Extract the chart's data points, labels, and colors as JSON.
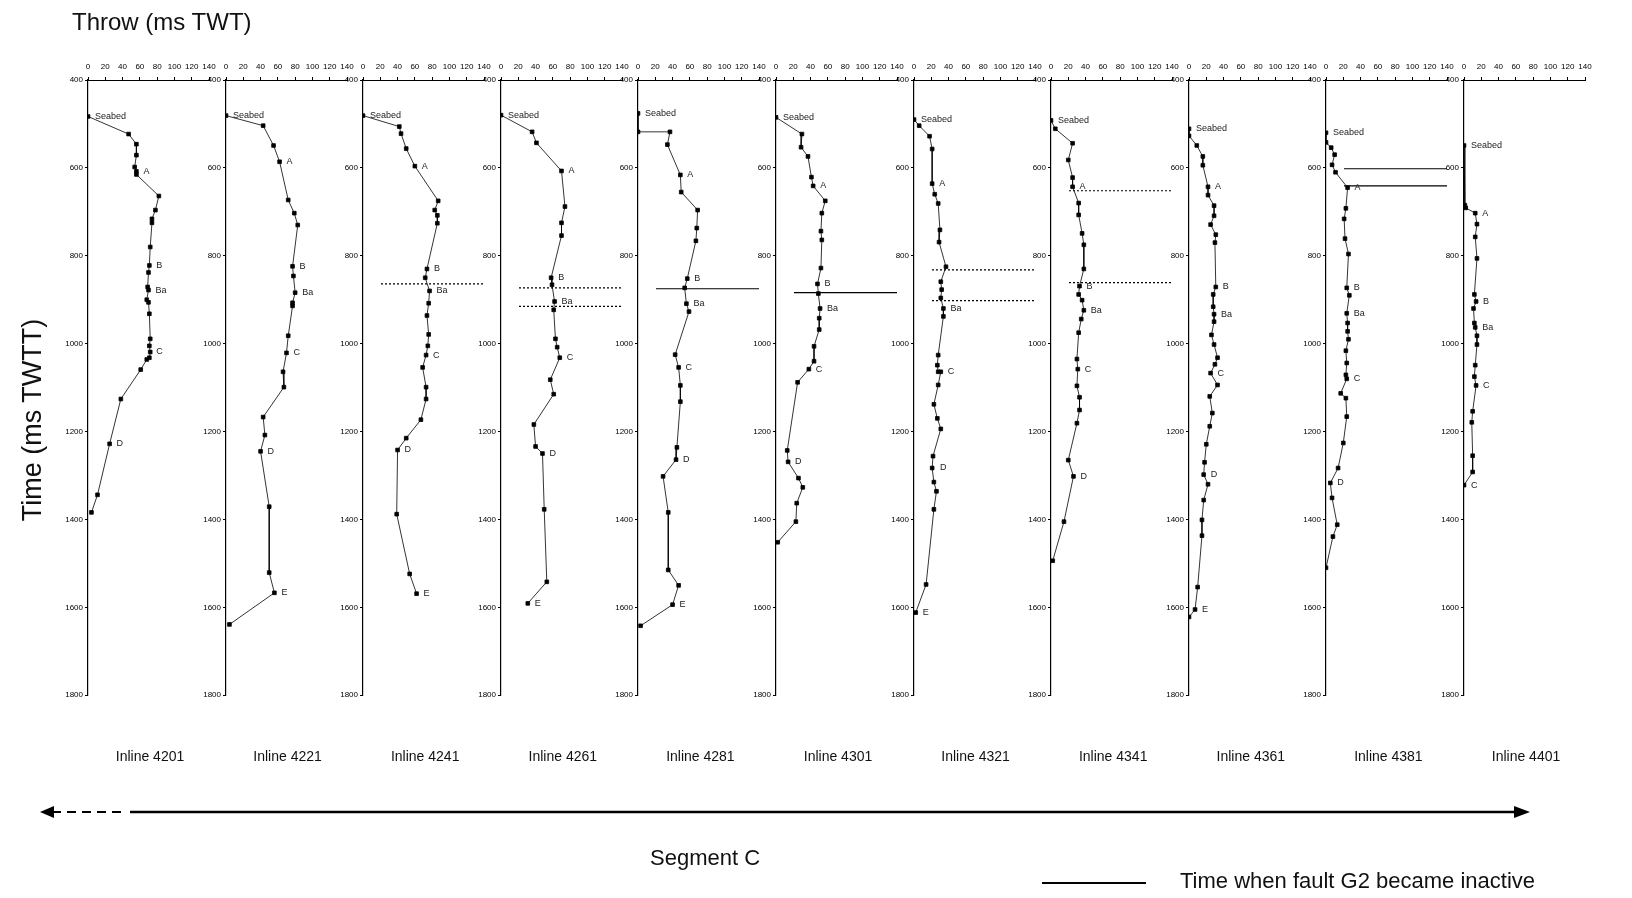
{
  "chart_data": [
    {
      "type": "line",
      "title": "Inline 4201",
      "xlabel": "Throw (ms TWT)",
      "ylabel": "Time (ms TWTT)",
      "xlim": [
        0,
        140
      ],
      "xticks": [
        0,
        20,
        40,
        60,
        80,
        100,
        120,
        140
      ],
      "ylim": [
        1800,
        400
      ],
      "yticks": [
        400,
        600,
        800,
        1000,
        1200,
        1400,
        1600,
        1800
      ],
      "marker": "square",
      "series": [
        {
          "color": "#000000",
          "x": [
            0,
            47,
            56,
            56,
            54,
            56,
            56,
            82,
            78,
            74,
            74,
            72,
            71,
            70,
            69,
            70,
            68,
            70,
            71,
            72,
            71,
            72,
            71,
            68,
            61,
            38,
            25,
            11,
            4
          ],
          "values": [
            483,
            523,
            546,
            571,
            598,
            608,
            615,
            664,
            696,
            716,
            725,
            780,
            822,
            838,
            871,
            878,
            900,
            906,
            932,
            989,
            1005,
            1019,
            1032,
            1036,
            1059,
            1126,
            1228,
            1344,
            1384
          ]
        }
      ],
      "annotations": [
        "Segment C",
        "Time when fault G2 became inactive",
        {
          "text": "Seabed",
          "x": 0,
          "y": 483
        },
        {
          "text": "A",
          "x": 56,
          "y": 608
        },
        {
          "text": "B",
          "x": 71,
          "y": 822
        },
        {
          "text": "Ba",
          "x": 70,
          "y": 878
        },
        {
          "text": "C",
          "x": 71,
          "y": 1019
        },
        {
          "text": "D",
          "x": 25,
          "y": 1228
        }
      ]
    },
    {
      "type": "line",
      "title": "Inline 4221",
      "xlim": [
        0,
        140
      ],
      "xticks": [
        0,
        20,
        40,
        60,
        80,
        100,
        120,
        140
      ],
      "ylim": [
        1800,
        400
      ],
      "yticks": [
        400,
        600,
        800,
        1000,
        1200,
        1400,
        1600,
        1800
      ],
      "marker": "square",
      "series": [
        {
          "color": "#000000",
          "x": [
            0,
            43,
            55,
            62,
            72,
            79,
            83,
            77,
            78,
            80,
            77,
            77,
            72,
            70,
            66,
            67,
            43,
            45,
            40,
            50,
            50,
            56,
            4
          ],
          "values": [
            481,
            504,
            549,
            586,
            673,
            703,
            730,
            824,
            846,
            884,
            907,
            914,
            982,
            1021,
            1064,
            1099,
            1167,
            1208,
            1245,
            1371,
            1521,
            1567,
            1639
          ]
        }
      ],
      "annotations": [
        {
          "text": "Seabed",
          "x": 0,
          "y": 481
        },
        {
          "text": "A",
          "x": 62,
          "y": 586
        },
        {
          "text": "B",
          "x": 77,
          "y": 824
        },
        {
          "text": "Ba",
          "x": 80,
          "y": 884
        },
        {
          "text": "C",
          "x": 70,
          "y": 1021
        },
        {
          "text": "D",
          "x": 40,
          "y": 1245
        },
        {
          "text": "E",
          "x": 56,
          "y": 1567
        }
      ]
    },
    {
      "type": "line",
      "title": "Inline 4241",
      "xlim": [
        0,
        140
      ],
      "xticks": [
        0,
        20,
        40,
        60,
        80,
        100,
        120,
        140
      ],
      "ylim": [
        1800,
        400
      ],
      "yticks": [
        400,
        600,
        800,
        1000,
        1200,
        1400,
        1600,
        1800
      ],
      "marker": "square",
      "series": [
        {
          "color": "#000000",
          "x": [
            0,
            42,
            44,
            50,
            60,
            87,
            83,
            86,
            86,
            74,
            72,
            77,
            76,
            74,
            76,
            75,
            73,
            69,
            73,
            73,
            67,
            50,
            40,
            39,
            54,
            62
          ],
          "values": [
            481,
            506,
            522,
            556,
            596,
            675,
            696,
            708,
            726,
            830,
            850,
            880,
            908,
            936,
            979,
            1005,
            1026,
            1054,
            1099,
            1126,
            1173,
            1215,
            1242,
            1388,
            1524,
            1569
          ]
        }
      ],
      "ref_lines": [
        {
          "axis": "y",
          "value": 864,
          "line_style": "dotted",
          "color": "#000000"
        }
      ],
      "annotations": [
        {
          "text": "Seabed",
          "x": 0,
          "y": 481
        },
        {
          "text": "A",
          "x": 60,
          "y": 596
        },
        {
          "text": "B",
          "x": 74,
          "y": 830
        },
        {
          "text": "Ba",
          "x": 77,
          "y": 880
        },
        {
          "text": "C",
          "x": 73,
          "y": 1026
        },
        {
          "text": "D",
          "x": 40,
          "y": 1242
        },
        {
          "text": "E",
          "x": 62,
          "y": 1569
        }
      ]
    },
    {
      "type": "line",
      "title": "Inline 4261",
      "xlim": [
        0,
        140
      ],
      "xticks": [
        0,
        20,
        40,
        60,
        80,
        100,
        120,
        140
      ],
      "ylim": [
        1800,
        400
      ],
      "yticks": [
        400,
        600,
        800,
        1000,
        1200,
        1400,
        1600,
        1800
      ],
      "marker": "square",
      "series": [
        {
          "color": "#000000",
          "x": [
            0,
            36,
            41,
            70,
            74,
            70,
            70,
            58,
            59,
            62,
            61,
            63,
            65,
            68,
            57,
            61,
            38,
            40,
            48,
            50,
            53,
            31
          ],
          "values": [
            480,
            518,
            543,
            607,
            688,
            725,
            754,
            850,
            866,
            904,
            923,
            989,
            1008,
            1032,
            1082,
            1115,
            1184,
            1234,
            1250,
            1377,
            1542,
            1591
          ]
        }
      ],
      "ref_lines": [
        {
          "axis": "y",
          "value": 873,
          "line_style": "dotted",
          "color": "#000000"
        },
        {
          "axis": "y",
          "value": 915,
          "line_style": "dotted",
          "color": "#000000"
        }
      ],
      "annotations": [
        {
          "text": "Seabed",
          "x": 0,
          "y": 480
        },
        {
          "text": "A",
          "x": 70,
          "y": 607
        },
        {
          "text": "B",
          "x": 58,
          "y": 850
        },
        {
          "text": "Ba",
          "x": 62,
          "y": 904
        },
        {
          "text": "C",
          "x": 68,
          "y": 1032
        },
        {
          "text": "D",
          "x": 48,
          "y": 1250
        },
        {
          "text": "E",
          "x": 31,
          "y": 1591
        }
      ]
    },
    {
      "type": "line",
      "title": "Inline 4281",
      "xlim": [
        0,
        140
      ],
      "xticks": [
        0,
        20,
        40,
        60,
        80,
        100,
        120,
        140
      ],
      "ylim": [
        1800,
        400
      ],
      "yticks": [
        400,
        600,
        800,
        1000,
        1200,
        1400,
        1600,
        1800
      ],
      "marker": "square",
      "series": [
        {
          "color": "#000000",
          "x": [
            0,
            0,
            37,
            34,
            49,
            50,
            69,
            68,
            67,
            57,
            54,
            56,
            59,
            43,
            47,
            49,
            49,
            45,
            44,
            29,
            35,
            35,
            47,
            40,
            3
          ],
          "values": [
            476,
            518,
            518,
            547,
            616,
            655,
            696,
            737,
            766,
            852,
            873,
            909,
            927,
            1025,
            1054,
            1095,
            1132,
            1236,
            1264,
            1302,
            1384,
            1515,
            1550,
            1594,
            1642
          ]
        }
      ],
      "ref_lines": [
        {
          "axis": "y",
          "value": 875,
          "line_style": "solid",
          "color": "#000000"
        }
      ],
      "annotations": [
        {
          "text": "Seabed",
          "x": 0,
          "y": 476
        },
        {
          "text": "A",
          "x": 49,
          "y": 616
        },
        {
          "text": "B",
          "x": 57,
          "y": 852
        },
        {
          "text": "Ba",
          "x": 56,
          "y": 909
        },
        {
          "text": "C",
          "x": 47,
          "y": 1054
        },
        {
          "text": "D",
          "x": 44,
          "y": 1264
        },
        {
          "text": "E",
          "x": 40,
          "y": 1594
        }
      ]
    },
    {
      "type": "line",
      "title": "Inline 4301",
      "xlim": [
        0,
        140
      ],
      "xticks": [
        0,
        20,
        40,
        60,
        80,
        100,
        120,
        140
      ],
      "ylim": [
        1800,
        400
      ],
      "yticks": [
        400,
        600,
        800,
        1000,
        1200,
        1400,
        1600,
        1800
      ],
      "marker": "square",
      "series": [
        {
          "color": "#000000",
          "x": [
            0,
            30,
            29,
            37,
            41,
            43,
            57,
            53,
            52,
            53,
            52,
            48,
            49,
            51,
            50,
            50,
            44,
            44,
            38,
            25,
            13,
            14,
            26,
            31,
            24,
            23,
            2
          ],
          "values": [
            485,
            523,
            553,
            574,
            621,
            641,
            675,
            703,
            744,
            764,
            828,
            864,
            886,
            920,
            942,
            968,
            1006,
            1040,
            1058,
            1088,
            1243,
            1269,
            1306,
            1327,
            1363,
            1405,
            1452
          ]
        }
      ],
      "ref_lines": [
        {
          "axis": "y",
          "value": 884,
          "line_style": "solid",
          "color": "#000000"
        }
      ],
      "annotations": [
        {
          "text": "Seabed",
          "x": 0,
          "y": 485
        },
        {
          "text": "A",
          "x": 43,
          "y": 641
        },
        {
          "text": "B",
          "x": 48,
          "y": 864
        },
        {
          "text": "Ba",
          "x": 51,
          "y": 920
        },
        {
          "text": "C",
          "x": 38,
          "y": 1058
        },
        {
          "text": "D",
          "x": 14,
          "y": 1269
        }
      ]
    },
    {
      "type": "line",
      "title": "Inline 4321",
      "xlim": [
        0,
        140
      ],
      "xticks": [
        0,
        20,
        40,
        60,
        80,
        100,
        120,
        140
      ],
      "ylim": [
        1800,
        400
      ],
      "yticks": [
        400,
        600,
        800,
        1000,
        1200,
        1400,
        1600,
        1800
      ],
      "marker": "square",
      "series": [
        {
          "color": "#000000",
          "x": [
            0,
            6,
            18,
            21,
            21,
            24,
            28,
            30,
            29,
            37,
            31,
            32,
            31,
            34,
            34,
            28,
            27,
            28,
            31,
            28,
            23,
            27,
            31,
            22,
            21,
            23,
            26,
            23,
            14,
            2
          ],
          "values": [
            490,
            504,
            528,
            557,
            636,
            660,
            681,
            741,
            769,
            825,
            859,
            877,
            896,
            920,
            938,
            1026,
            1049,
            1064,
            1064,
            1094,
            1138,
            1170,
            1194,
            1256,
            1283,
            1315,
            1336,
            1377,
            1548,
            1612
          ]
        }
      ],
      "ref_lines": [
        {
          "axis": "y",
          "value": 832,
          "line_style": "dotted",
          "color": "#000000"
        },
        {
          "axis": "y",
          "value": 902,
          "line_style": "dotted",
          "color": "#000000"
        }
      ],
      "annotations": [
        {
          "text": "Seabed",
          "x": 0,
          "y": 490
        },
        {
          "text": "A",
          "x": 21,
          "y": 636
        },
        {
          "text": "Ba",
          "x": 34,
          "y": 920
        },
        {
          "text": "C",
          "x": 31,
          "y": 1064
        },
        {
          "text": "D",
          "x": 22,
          "y": 1283
        },
        {
          "text": "E",
          "x": 2,
          "y": 1612
        }
      ]
    },
    {
      "type": "line",
      "title": "Inline 4341",
      "xlim": [
        0,
        140
      ],
      "xticks": [
        0,
        20,
        40,
        60,
        80,
        100,
        120,
        140
      ],
      "ylim": [
        1800,
        400
      ],
      "yticks": [
        400,
        600,
        800,
        1000,
        1200,
        1400,
        1600,
        1800
      ],
      "marker": "square",
      "series": [
        {
          "color": "#000000",
          "x": [
            0,
            5,
            25,
            20,
            25,
            25,
            32,
            32,
            36,
            38,
            38,
            33,
            32,
            36,
            38,
            35,
            32,
            30,
            31,
            30,
            33,
            33,
            30,
            20,
            26,
            15,
            2
          ],
          "values": [
            492,
            511,
            544,
            582,
            622,
            643,
            680,
            707,
            749,
            775,
            830,
            869,
            888,
            901,
            924,
            944,
            975,
            1035,
            1058,
            1096,
            1122,
            1151,
            1181,
            1265,
            1302,
            1405,
            1494
          ]
        }
      ],
      "ref_lines": [
        {
          "axis": "y",
          "value": 652,
          "line_style": "dotted",
          "color": "#000000"
        },
        {
          "axis": "y",
          "value": 861,
          "line_style": "dotted",
          "color": "#000000"
        }
      ],
      "annotations": [
        {
          "text": "Seabed",
          "x": 0,
          "y": 492
        },
        {
          "text": "A",
          "x": 25,
          "y": 643
        },
        {
          "text": "B",
          "x": 33,
          "y": 869
        },
        {
          "text": "Ba",
          "x": 38,
          "y": 924
        },
        {
          "text": "C",
          "x": 31,
          "y": 1058
        },
        {
          "text": "D",
          "x": 26,
          "y": 1302
        }
      ]
    },
    {
      "type": "line",
      "title": "Inline 4361",
      "xlim": [
        0,
        140
      ],
      "xticks": [
        0,
        20,
        40,
        60,
        80,
        100,
        120,
        140
      ],
      "ylim": [
        1800,
        400
      ],
      "yticks": [
        400,
        600,
        800,
        1000,
        1200,
        1400,
        1600,
        1800
      ],
      "marker": "square",
      "series": [
        {
          "color": "#000000",
          "x": [
            0,
            0,
            9,
            16,
            16,
            22,
            22,
            29,
            29,
            25,
            31,
            30,
            31,
            28,
            28,
            29,
            29,
            26,
            29,
            33,
            30,
            25,
            33,
            24,
            27,
            24,
            20,
            18,
            17,
            22,
            17,
            15,
            15,
            10,
            7,
            0
          ],
          "values": [
            511,
            527,
            549,
            574,
            594,
            643,
            662,
            686,
            709,
            729,
            752,
            770,
            871,
            888,
            916,
            933,
            950,
            980,
            1002,
            1032,
            1047,
            1067,
            1094,
            1120,
            1158,
            1188,
            1229,
            1270,
            1298,
            1320,
            1356,
            1401,
            1437,
            1554,
            1605,
            1622
          ]
        }
      ],
      "annotations": [
        {
          "text": "Seabed",
          "x": 0,
          "y": 511
        },
        {
          "text": "A",
          "x": 22,
          "y": 643
        },
        {
          "text": "B",
          "x": 31,
          "y": 871
        },
        {
          "text": "Ba",
          "x": 29,
          "y": 933
        },
        {
          "text": "C",
          "x": 25,
          "y": 1067
        },
        {
          "text": "D",
          "x": 17,
          "y": 1298
        },
        {
          "text": "E",
          "x": 7,
          "y": 1605
        }
      ]
    },
    {
      "type": "line",
      "title": "Inline 4381",
      "xlim": [
        0,
        140
      ],
      "xticks": [
        0,
        20,
        40,
        60,
        80,
        100,
        120,
        140
      ],
      "ylim": [
        1800,
        400
      ],
      "yticks": [
        400,
        600,
        800,
        1000,
        1200,
        1400,
        1600,
        1800
      ],
      "marker": "square",
      "series": [
        {
          "color": "#000000",
          "x": [
            0,
            0,
            6,
            10,
            7,
            11,
            25,
            23,
            21,
            22,
            26,
            24,
            27,
            24,
            25,
            25,
            26,
            23,
            24,
            23,
            24,
            17,
            23,
            24,
            20,
            14,
            5,
            7,
            13,
            8,
            0
          ],
          "values": [
            520,
            542,
            554,
            570,
            593,
            610,
            645,
            692,
            716,
            761,
            796,
            873,
            890,
            931,
            953,
            972,
            990,
            1016,
            1044,
            1071,
            1080,
            1113,
            1124,
            1166,
            1226,
            1283,
            1317,
            1351,
            1412,
            1439,
            1510
          ]
        }
      ],
      "ref_lines": [
        {
          "axis": "y",
          "value": 602,
          "line_style": "solid",
          "color": "#000000"
        },
        {
          "axis": "y",
          "value": 641,
          "line_style": "solid",
          "color": "#000000"
        }
      ],
      "annotations": [
        {
          "text": "Seabed",
          "x": 0,
          "y": 520
        },
        {
          "text": "A",
          "x": 25,
          "y": 645
        },
        {
          "text": "B",
          "x": 24,
          "y": 873
        },
        {
          "text": "Ba",
          "x": 24,
          "y": 931
        },
        {
          "text": "C",
          "x": 24,
          "y": 1080
        },
        {
          "text": "D",
          "x": 5,
          "y": 1317
        }
      ]
    },
    {
      "type": "line",
      "title": "Inline 4401",
      "xlim": [
        0,
        140
      ],
      "xticks": [
        0,
        20,
        40,
        60,
        80,
        100,
        120,
        140
      ],
      "ylim": [
        1800,
        400
      ],
      "yticks": [
        400,
        600,
        800,
        1000,
        1200,
        1400,
        1600,
        1800
      ],
      "marker": "square",
      "series": [
        {
          "color": "#000000",
          "x": [
            0,
            1,
            2,
            13,
            15,
            13,
            15,
            12,
            14,
            11,
            12,
            13,
            15,
            15,
            13,
            12,
            14,
            10,
            9,
            10,
            10,
            0
          ],
          "values": [
            549,
            685,
            691,
            703,
            728,
            757,
            806,
            888,
            904,
            920,
            953,
            963,
            982,
            1002,
            1049,
            1075,
            1095,
            1154,
            1179,
            1255,
            1292,
            1322
          ]
        }
      ],
      "annotations": [
        {
          "text": "Seabed",
          "x": 0,
          "y": 549
        },
        {
          "text": "A",
          "x": 13,
          "y": 703
        },
        {
          "text": "B",
          "x": 14,
          "y": 904
        },
        {
          "text": "Ba",
          "x": 13,
          "y": 963
        },
        {
          "text": "C",
          "x": 14,
          "y": 1095
        },
        {
          "text": "C",
          "x": 0,
          "y": 1322
        }
      ]
    }
  ]
}
